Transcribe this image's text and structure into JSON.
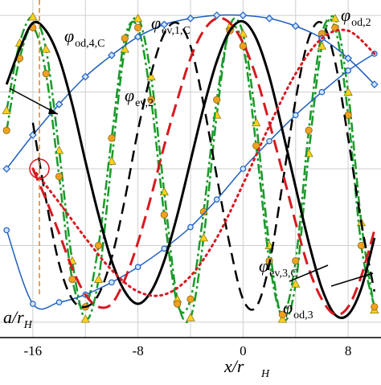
{
  "chart_data": {
    "type": "line",
    "xlabel_main": "x/r",
    "xlabel_sub": "H",
    "xlim": [
      -18.5,
      10.5
    ],
    "ylim": [
      -1.1,
      1.1
    ],
    "grid": true,
    "x_ticks": [
      {
        "value": -16,
        "label": "-16"
      },
      {
        "value": -8,
        "label": "-8"
      },
      {
        "value": 0,
        "label": "0"
      },
      {
        "value": 8,
        "label": "8"
      }
    ],
    "annotation": {
      "main": "a/r",
      "sub": "H",
      "x": -15.5
    },
    "labels": [
      {
        "id": "od4c",
        "main": "φ",
        "sub": "od,4,C"
      },
      {
        "id": "ev1c",
        "main": "φ",
        "sub": "ev,1,C"
      },
      {
        "id": "od2",
        "main": "φ",
        "sub": "od,2"
      },
      {
        "id": "ev2",
        "main": "φ",
        "sub": "ev,2"
      },
      {
        "id": "ev3c",
        "main": "φ",
        "sub": "ev,3,C"
      },
      {
        "id": "od3",
        "main": "φ",
        "sub": "od,3"
      }
    ],
    "colors": {
      "black": "#000000",
      "red": "#d71920",
      "blue": "#1f5fbf",
      "green": "#1a9a2a",
      "marker_yellow": "#ffd21a",
      "marker_orange": "#f0a020",
      "marker_blue_fill": "#cfe6ff",
      "grid": "#cfcfcf",
      "annotation_line": "#d9822b"
    },
    "series": [
      {
        "id": "od4c-triangles",
        "style": "green-dashdot-triangles",
        "color": "#1a9a2a",
        "x": [
          -18,
          -17,
          -16,
          -15,
          -14,
          -13,
          -12,
          -11,
          -10,
          -9,
          -8,
          -7,
          -6,
          -5,
          -4,
          -3,
          -2,
          -1,
          0,
          1,
          2,
          3,
          4,
          5,
          6,
          7,
          8,
          9,
          10
        ],
        "y": [
          0.38,
          0.82,
          0.99,
          0.78,
          0.12,
          -0.6,
          -0.98,
          -0.72,
          0.05,
          0.78,
          0.98,
          0.6,
          -0.15,
          -0.85,
          -0.97,
          -0.45,
          0.35,
          0.93,
          0.88,
          0.3,
          -0.5,
          -0.98,
          -0.75,
          0.1,
          0.8,
          0.98,
          0.5,
          -0.35,
          -0.92
        ]
      },
      {
        "id": "od3-circles",
        "style": "green-dashdot-circles",
        "color": "#1a9a2a",
        "x": [
          -18,
          -17,
          -16,
          -15,
          -14,
          -13,
          -12,
          -11,
          -10,
          -9,
          -8,
          -7,
          -6,
          -5,
          -4,
          -3,
          -2,
          -1,
          0,
          1,
          2,
          3,
          4,
          5,
          6,
          7,
          8,
          9,
          10
        ],
        "y": [
          0.25,
          0.72,
          0.92,
          0.62,
          -0.05,
          -0.72,
          -0.9,
          -0.5,
          0.2,
          0.85,
          0.92,
          0.45,
          -0.3,
          -0.88,
          -0.85,
          -0.28,
          0.45,
          0.9,
          0.8,
          0.15,
          -0.6,
          -0.95,
          -0.6,
          0.25,
          0.88,
          0.92,
          0.35,
          -0.5,
          -0.9
        ]
      },
      {
        "id": "ev1c",
        "style": "blue-diamonds",
        "color": "#1f5fbf",
        "x": [
          -18,
          -16,
          -14,
          -12,
          -10,
          -8,
          -6,
          -4,
          -2,
          0,
          2,
          4,
          6,
          8,
          10
        ],
        "y": [
          0.0,
          0.22,
          0.42,
          0.6,
          0.74,
          0.86,
          0.94,
          0.98,
          1.0,
          1.0,
          0.98,
          0.93,
          0.85,
          0.72,
          0.55
        ]
      },
      {
        "id": "ev2",
        "style": "blue-circles-line",
        "color": "#1f5fbf",
        "x": [
          -18,
          -16,
          -14,
          -12,
          -10,
          -8,
          -6,
          -4,
          -2,
          0,
          2,
          4,
          6,
          8,
          10
        ],
        "y": [
          -0.4,
          -0.88,
          -0.87,
          -0.82,
          -0.74,
          -0.64,
          -0.52,
          -0.38,
          -0.2,
          0.0,
          0.18,
          0.35,
          0.5,
          0.64,
          0.75
        ]
      },
      {
        "id": "od-black-solid",
        "style": "black-solid",
        "color": "#000000",
        "x": [
          -18,
          -17,
          -16,
          -15,
          -14,
          -13,
          -12,
          -11,
          -10,
          -9,
          -8,
          -7,
          -6,
          -5,
          -4,
          -3,
          -2,
          -1,
          0,
          1,
          2,
          3,
          4,
          5,
          6,
          7,
          8,
          9,
          10
        ],
        "y": [
          0.55,
          0.78,
          0.95,
          0.9,
          0.72,
          0.42,
          0.05,
          -0.3,
          -0.6,
          -0.8,
          -0.88,
          -0.8,
          -0.6,
          -0.3,
          0.05,
          0.4,
          0.7,
          0.9,
          0.96,
          0.85,
          0.6,
          0.25,
          -0.12,
          -0.48,
          -0.78,
          -0.95,
          -0.95,
          -0.78,
          -0.45
        ]
      },
      {
        "id": "od-black-dashed",
        "style": "black-dashed",
        "color": "#000000",
        "x": [
          -16,
          -15,
          -14,
          -13,
          -12,
          -11,
          -10,
          -9,
          -8,
          -7,
          -6,
          -5,
          -4,
          -3,
          -2,
          -1,
          0,
          1,
          2,
          3,
          4,
          5,
          6,
          7,
          8,
          9,
          10
        ],
        "y": [
          0.3,
          -0.2,
          -0.62,
          -0.85,
          -0.9,
          -0.82,
          -0.58,
          -0.2,
          0.25,
          0.62,
          0.88,
          0.95,
          0.8,
          0.42,
          -0.05,
          -0.5,
          -0.85,
          -0.9,
          -0.62,
          -0.1,
          0.45,
          0.85,
          0.95,
          0.7,
          0.2,
          -0.35,
          -0.8
        ]
      },
      {
        "id": "od2-red-dashed",
        "style": "red-dashed",
        "color": "#d71920",
        "x": [
          -16,
          -15,
          -14,
          -13,
          -12,
          -11,
          -10,
          -9,
          -8,
          -7,
          -6,
          -5,
          -4,
          -3,
          -2,
          -1,
          0,
          1,
          2,
          3,
          4,
          5,
          6,
          7,
          8,
          9,
          10
        ],
        "y": [
          0.0,
          -0.2,
          -0.42,
          -0.65,
          -0.82,
          -0.9,
          -0.88,
          -0.72,
          -0.48,
          -0.18,
          0.15,
          0.45,
          0.72,
          0.9,
          0.98,
          0.95,
          0.82,
          0.6,
          0.3,
          -0.02,
          -0.35,
          -0.65,
          -0.85,
          -0.95,
          -0.9,
          -0.7,
          -0.4
        ]
      },
      {
        "id": "ev2-red-dotted",
        "style": "red-dotted",
        "color": "#d71920",
        "x": [
          -16,
          -14,
          -12,
          -10,
          -8,
          -6,
          -4,
          -2,
          0,
          2,
          4,
          6,
          8,
          10
        ],
        "y": [
          0.0,
          -0.22,
          -0.45,
          -0.66,
          -0.8,
          -0.82,
          -0.7,
          -0.45,
          -0.1,
          0.28,
          0.62,
          0.85,
          0.9,
          0.75
        ]
      }
    ]
  }
}
